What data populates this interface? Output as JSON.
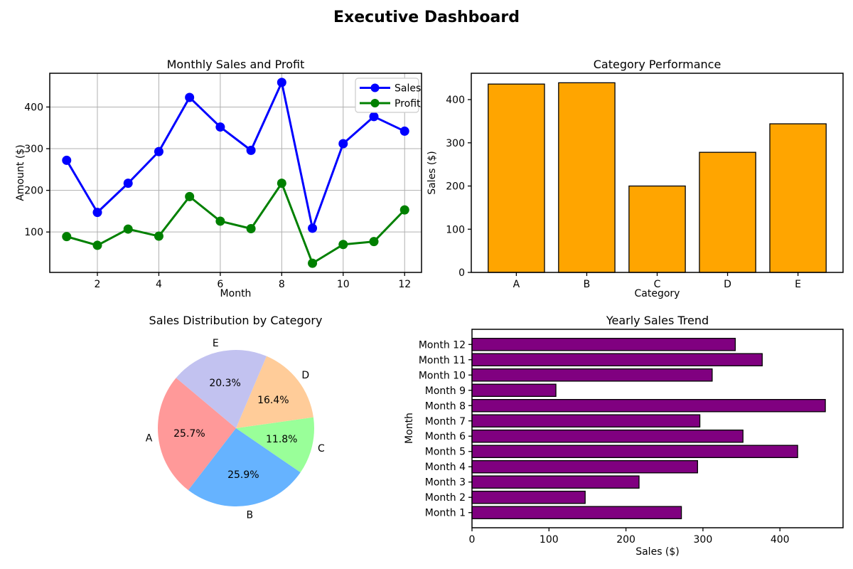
{
  "figure": {
    "suptitle": "Executive Dashboard",
    "background": "#ffffff",
    "text_color": "#000000",
    "grid_color": "#b0b0b0"
  },
  "chart_data": [
    {
      "id": "monthly-sales-profit",
      "type": "line",
      "title": "Monthly Sales and Profit",
      "xlabel": "Month",
      "ylabel": "Amount ($)",
      "x": [
        1,
        2,
        3,
        4,
        5,
        6,
        7,
        8,
        9,
        10,
        11,
        12
      ],
      "series": [
        {
          "name": "Sales",
          "color": "#0000ff",
          "marker": "circle",
          "values": [
            272,
            147,
            217,
            293,
            423,
            352,
            296,
            459,
            109,
            312,
            377,
            342
          ]
        },
        {
          "name": "Profit",
          "color": "#008000",
          "marker": "circle",
          "values": [
            89,
            68,
            107,
            90,
            185,
            126,
            108,
            217,
            25,
            70,
            77,
            153
          ]
        }
      ],
      "xlim": [
        0.45,
        12.55
      ],
      "ylim": [
        3,
        481
      ],
      "xticks": [
        2,
        4,
        6,
        8,
        10,
        12
      ],
      "yticks": [
        100,
        200,
        300,
        400
      ],
      "grid": true,
      "legend_position": "upper right"
    },
    {
      "id": "category-performance",
      "type": "bar",
      "title": "Category Performance",
      "xlabel": "Category",
      "ylabel": "Sales ($)",
      "categories": [
        "A",
        "B",
        "C",
        "D",
        "E"
      ],
      "values": [
        436,
        439,
        200,
        278,
        344
      ],
      "bar_color": "#ffa500",
      "edge_color": "#000000",
      "ylim": [
        0,
        461
      ],
      "yticks": [
        0,
        100,
        200,
        300,
        400
      ],
      "grid": false
    },
    {
      "id": "sales-distribution",
      "type": "pie",
      "title": "Sales Distribution by Category",
      "labels": [
        "A",
        "B",
        "C",
        "D",
        "E"
      ],
      "percentages": [
        25.7,
        25.9,
        11.8,
        16.4,
        20.3
      ],
      "colors": [
        "#ff9999",
        "#66b3ff",
        "#99ff99",
        "#ffcc99",
        "#c2c2f0"
      ],
      "start_angle": 140,
      "counterclock": true
    },
    {
      "id": "yearly-sales-trend",
      "type": "barh",
      "title": "Yearly Sales Trend",
      "xlabel": "Sales ($)",
      "ylabel": "Month",
      "categories": [
        "Month 1",
        "Month 2",
        "Month 3",
        "Month 4",
        "Month 5",
        "Month 6",
        "Month 7",
        "Month 8",
        "Month 9",
        "Month 10",
        "Month 11",
        "Month 12"
      ],
      "values": [
        272,
        147,
        217,
        293,
        423,
        352,
        296,
        459,
        109,
        312,
        377,
        342
      ],
      "bar_color": "#800080",
      "edge_color": "#000000",
      "xlim": [
        0,
        482
      ],
      "xticks": [
        0,
        100,
        200,
        300,
        400
      ],
      "grid": false
    }
  ]
}
